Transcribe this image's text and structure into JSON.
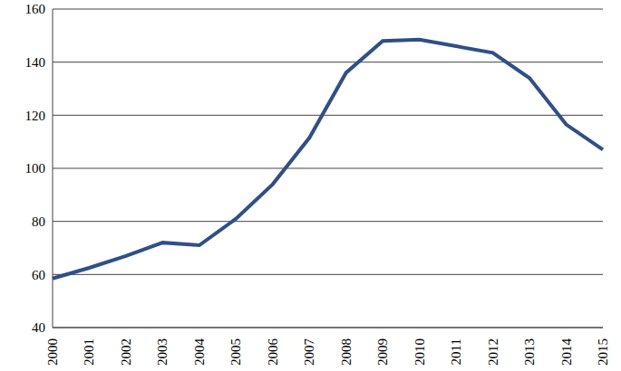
{
  "chart_data": {
    "type": "line",
    "categories": [
      "2000",
      "2001",
      "2002",
      "2003",
      "2004",
      "2005",
      "2006",
      "2007",
      "2008",
      "2009",
      "2010",
      "2011",
      "2012",
      "2013",
      "2014",
      "2015"
    ],
    "values": [
      58.5,
      62.5,
      67,
      72,
      71,
      81,
      94,
      111.5,
      136,
      148,
      148.5,
      146,
      143.5,
      134,
      116.5,
      107
    ],
    "color": "#2f4f8a",
    "ylim": [
      40,
      160
    ],
    "yticks": [
      40,
      60,
      80,
      100,
      120,
      140,
      160
    ],
    "grid": true
  }
}
